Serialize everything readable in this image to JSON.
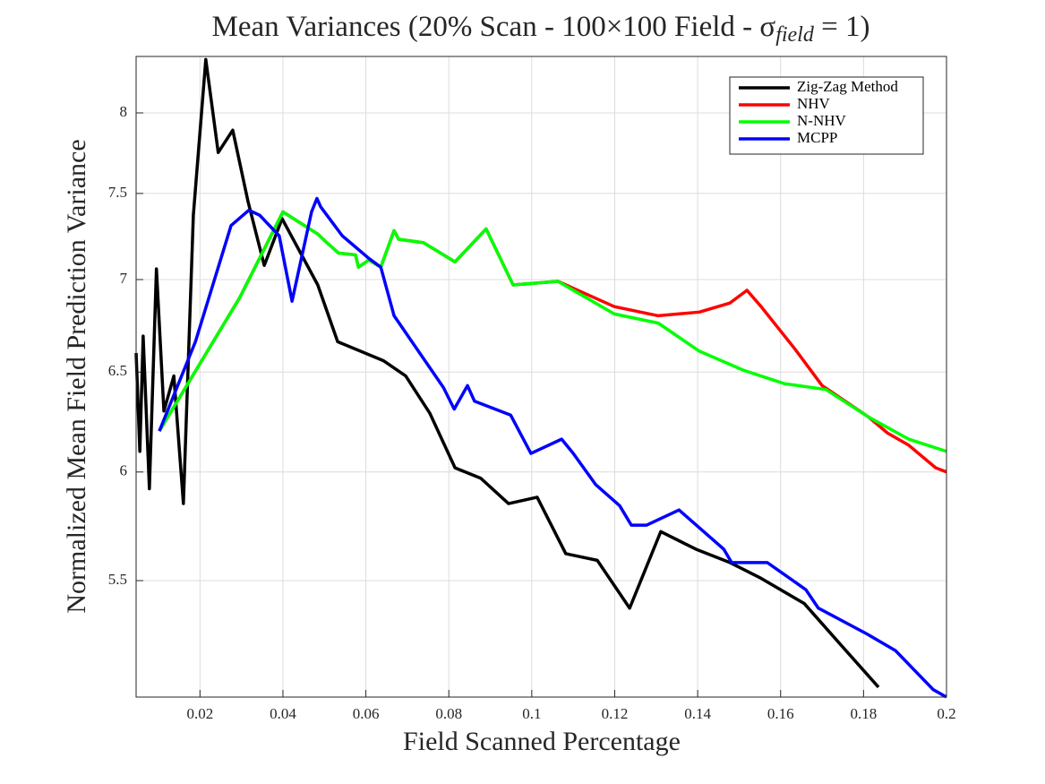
{
  "chart_data": {
    "type": "line",
    "title": "Mean Variances (20% Scan - 100×100 Field - σ",
    "title_subscript": "field",
    "title_end": " = 1)",
    "x_label": "Field Scanned Percentage",
    "y_label": "Normalized Mean Field Prediction Variance",
    "xlim": [
      0.0046,
      0.2
    ],
    "ylim": [
      5.01,
      8.37
    ],
    "xticks": [
      0.02,
      0.04,
      0.06,
      0.08,
      0.1,
      0.12,
      0.14,
      0.16,
      0.18,
      0.2
    ],
    "yticks": [
      5.5,
      6,
      6.5,
      7,
      7.5,
      8
    ],
    "y_scale": "log",
    "grid": true,
    "legend": "upper right",
    "series": [
      {
        "name": "Zig-Zag Method",
        "color": "#000000",
        "x": [
          0.0046,
          0.0055,
          0.0063,
          0.0078,
          0.0095,
          0.0113,
          0.0137,
          0.016,
          0.0184,
          0.0214,
          0.0244,
          0.0279,
          0.0316,
          0.0355,
          0.0398,
          0.0484,
          0.0532,
          0.0642,
          0.0696,
          0.0754,
          0.0815,
          0.0877,
          0.0944,
          0.1013,
          0.1082,
          0.1158,
          0.1236,
          0.1311,
          0.1396,
          0.1478,
          0.1553,
          0.1657,
          0.1737,
          0.1836
        ],
        "values": [
          6.6,
          6.1,
          6.69,
          5.92,
          7.06,
          6.3,
          6.48,
          5.85,
          7.37,
          8.35,
          7.75,
          7.89,
          7.45,
          7.08,
          7.35,
          6.97,
          6.66,
          6.56,
          6.48,
          6.29,
          6.02,
          5.97,
          5.85,
          5.88,
          5.62,
          5.59,
          5.38,
          5.72,
          5.64,
          5.58,
          5.51,
          5.4,
          5.24,
          5.05
        ]
      },
      {
        "name": "NHV",
        "color": "#ff0000",
        "x": [
          0.0102,
          0.0296,
          0.04,
          0.0484,
          0.0506,
          0.0534,
          0.0575,
          0.0582,
          0.0607,
          0.0636,
          0.0668,
          0.0679,
          0.0739,
          0.0815,
          0.089,
          0.0955,
          0.1063,
          0.1199,
          0.1305,
          0.1404,
          0.1478,
          0.1519,
          0.1553,
          0.1635,
          0.17,
          0.1812,
          0.1858,
          0.1909,
          0.1974,
          0.2
        ],
        "values": [
          6.2,
          6.9,
          7.39,
          7.26,
          7.21,
          7.15,
          7.14,
          7.07,
          7.11,
          7.07,
          7.28,
          7.23,
          7.21,
          7.1,
          7.29,
          6.97,
          6.99,
          6.85,
          6.8,
          6.82,
          6.87,
          6.94,
          6.85,
          6.62,
          6.43,
          6.27,
          6.19,
          6.13,
          6.02,
          6.0
        ]
      },
      {
        "name": "N-NHV",
        "color": "#00ff00",
        "x": [
          0.0102,
          0.0296,
          0.04,
          0.0484,
          0.0506,
          0.0534,
          0.0575,
          0.0582,
          0.0607,
          0.0636,
          0.0668,
          0.0679,
          0.0739,
          0.0815,
          0.089,
          0.0955,
          0.1063,
          0.1199,
          0.1305,
          0.1404,
          0.151,
          0.1609,
          0.1709,
          0.1812,
          0.1909,
          0.2
        ],
        "values": [
          6.2,
          6.9,
          7.39,
          7.26,
          7.21,
          7.15,
          7.14,
          7.07,
          7.11,
          7.07,
          7.28,
          7.23,
          7.21,
          7.1,
          7.29,
          6.97,
          6.99,
          6.81,
          6.76,
          6.61,
          6.51,
          6.44,
          6.41,
          6.27,
          6.16,
          6.1
        ]
      },
      {
        "name": "MCPP",
        "color": "#0000ff",
        "x": [
          0.0102,
          0.0189,
          0.0275,
          0.0318,
          0.0344,
          0.0391,
          0.0422,
          0.0469,
          0.0482,
          0.0491,
          0.0543,
          0.0607,
          0.0636,
          0.0668,
          0.0787,
          0.0813,
          0.0845,
          0.0862,
          0.0949,
          0.0998,
          0.1072,
          0.11,
          0.1154,
          0.1212,
          0.124,
          0.1277,
          0.1355,
          0.1463,
          0.1482,
          0.1568,
          0.1661,
          0.1691,
          0.1808,
          0.1877,
          0.1968,
          0.2
        ],
        "values": [
          6.2,
          6.66,
          7.31,
          7.4,
          7.37,
          7.25,
          6.88,
          7.39,
          7.47,
          7.42,
          7.25,
          7.12,
          7.07,
          6.8,
          6.42,
          6.31,
          6.43,
          6.35,
          6.28,
          6.09,
          6.16,
          6.09,
          5.94,
          5.84,
          5.75,
          5.75,
          5.82,
          5.64,
          5.58,
          5.58,
          5.46,
          5.38,
          5.27,
          5.2,
          5.04,
          5.01
        ]
      }
    ]
  }
}
